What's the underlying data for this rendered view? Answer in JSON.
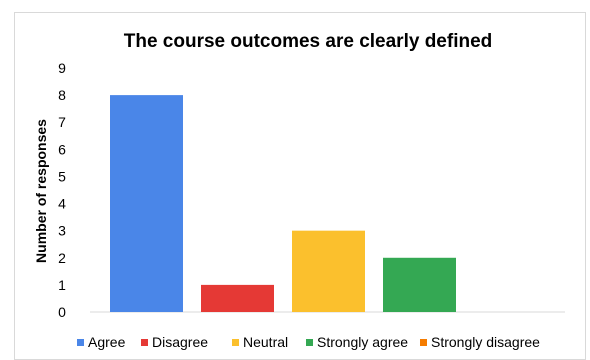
{
  "chart_data": {
    "type": "bar",
    "title": "The course outcomes are clearly defined",
    "xlabel": "",
    "ylabel": "Number of responses",
    "ylim": [
      0,
      9
    ],
    "yticks": [
      0,
      1,
      2,
      3,
      4,
      5,
      6,
      7,
      8,
      9
    ],
    "grid": false,
    "legend_position": "bottom",
    "categories": [
      "Agree",
      "Disagree",
      "Neutral",
      "Strongly agree",
      "Strongly disagree"
    ],
    "values": [
      8,
      1,
      3,
      2,
      0
    ],
    "colors": [
      "#4a86e8",
      "#e53935",
      "#fbc02d",
      "#34a853",
      "#f57c00"
    ]
  }
}
